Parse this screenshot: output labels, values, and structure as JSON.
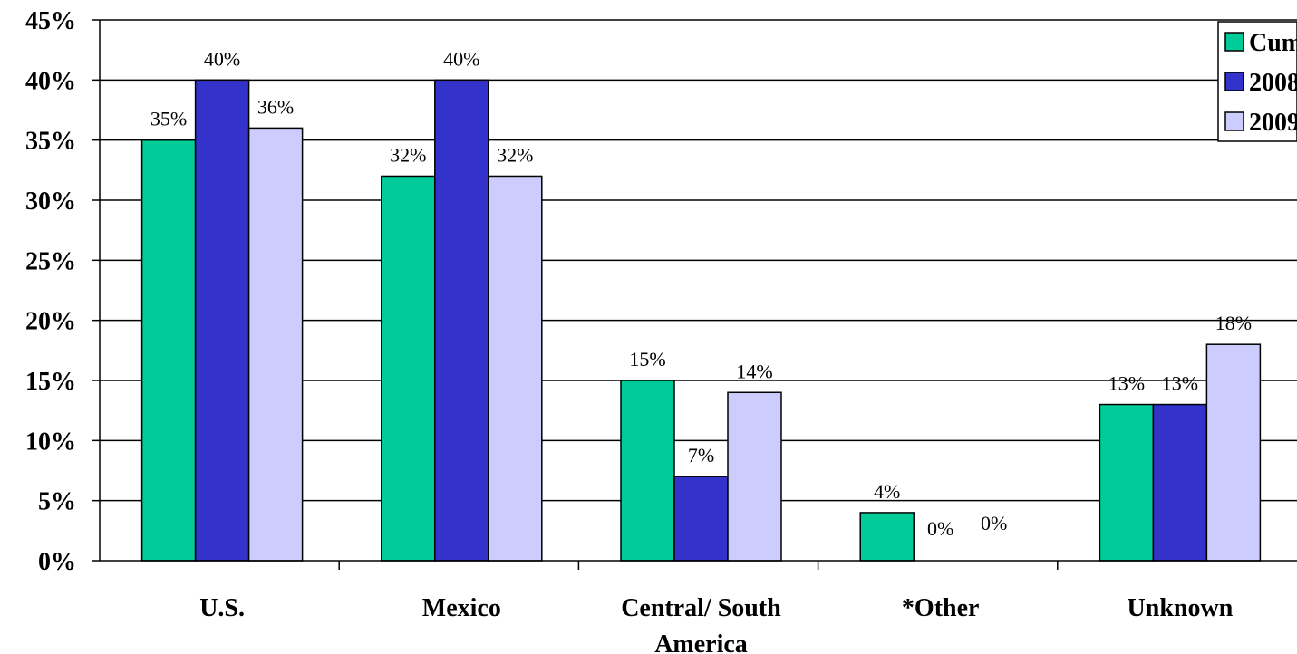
{
  "chart_data": {
    "type": "bar",
    "categories": [
      [
        "U.S."
      ],
      [
        "Mexico"
      ],
      [
        "Central/ South",
        "America"
      ],
      [
        "*Other"
      ],
      [
        "Unknown"
      ]
    ],
    "series": [
      {
        "name": "Cum",
        "color": "#00CC99",
        "values": [
          35,
          32,
          15,
          4,
          13
        ],
        "labels": [
          "35%",
          "32%",
          "15%",
          "4%",
          "13%"
        ]
      },
      {
        "name": "2008",
        "color": "#3333CC",
        "values": [
          40,
          40,
          7,
          0,
          13
        ],
        "labels": [
          "40%",
          "40%",
          "7%",
          "0%",
          "13%"
        ]
      },
      {
        "name": "2009",
        "color": "#CCCCFF",
        "values": [
          36,
          32,
          14,
          0,
          18
        ],
        "labels": [
          "36%",
          "32%",
          "14%",
          "0%",
          "18%"
        ]
      }
    ],
    "ylim": [
      0,
      45
    ],
    "yticks": [
      0,
      5,
      10,
      15,
      20,
      25,
      30,
      35,
      40,
      45
    ],
    "ytick_labels": [
      "0%",
      "5%",
      "10%",
      "15%",
      "20%",
      "25%",
      "30%",
      "35%",
      "40%",
      "45%"
    ],
    "grid": true,
    "legend": "top-right"
  }
}
